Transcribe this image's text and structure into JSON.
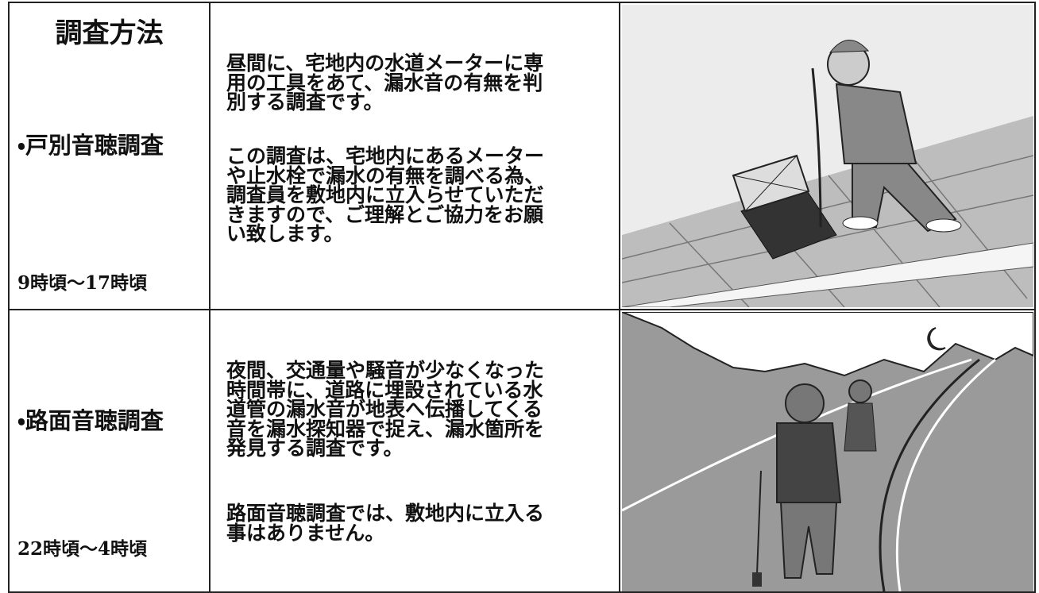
{
  "header": {
    "title": "調査方法"
  },
  "rows": [
    {
      "method": "・戸別音聴調査",
      "time": "9時頃～17時頃",
      "paragraphs": [
        [
          "昼間に、宅地内の水道メーターに専",
          "用の工具をあて、漏水音の有無を判",
          "別する調査です。"
        ],
        [
          "この調査は、宅地内にあるメーター",
          "や止水栓で漏水の有無を調べる為、",
          "調査員を敷地内に立入らせていただ",
          "きますので、ご理解とご協力をお願",
          "い致します。"
        ]
      ]
    },
    {
      "method": "・路面音聴調査",
      "time": "22時頃～4時頃",
      "paragraphs": [
        [
          "夜間、交通量や騒音が少なくなった",
          "時間帯に、道路に埋設されている水",
          "道管の漏水音が地表へ伝播してくる",
          "音を漏水探知器で捉え、漏水箇所を",
          "発見する調査です。"
        ],
        [
          "路面音聴調査では、敷地内に立入る",
          "事はありません。"
        ]
      ]
    }
  ]
}
